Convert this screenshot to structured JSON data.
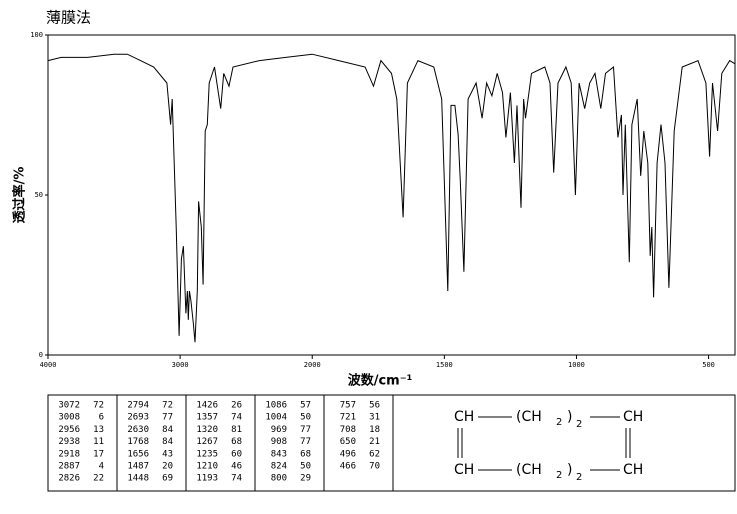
{
  "chart_data": {
    "type": "line",
    "title": "薄膜法",
    "ylabel": "透过率/%",
    "xlabel": "波数/cm⁻¹",
    "xlim": [
      4000,
      400
    ],
    "ylim": [
      0,
      100
    ],
    "xticks": [
      4000,
      3000,
      2000,
      1500,
      1000,
      500
    ],
    "yticks": [
      0,
      50,
      100
    ],
    "x_scale_break": 2000,
    "x_scale_ratio": 2,
    "color": "#000000",
    "x": [
      4000,
      3900,
      3700,
      3500,
      3400,
      3300,
      3200,
      3100,
      3072,
      3060,
      3030,
      3008,
      2990,
      2975,
      2956,
      2945,
      2938,
      2930,
      2918,
      2900,
      2887,
      2870,
      2860,
      2840,
      2826,
      2810,
      2794,
      2780,
      2740,
      2693,
      2670,
      2630,
      2600,
      2400,
      2200,
      2000,
      1900,
      1800,
      1768,
      1740,
      1700,
      1680,
      1656,
      1640,
      1600,
      1540,
      1510,
      1487,
      1475,
      1460,
      1448,
      1440,
      1426,
      1410,
      1380,
      1357,
      1340,
      1320,
      1300,
      1280,
      1267,
      1250,
      1235,
      1225,
      1210,
      1200,
      1193,
      1170,
      1120,
      1100,
      1086,
      1070,
      1040,
      1020,
      1004,
      990,
      969,
      950,
      930,
      908,
      890,
      860,
      843,
      830,
      824,
      815,
      800,
      790,
      770,
      757,
      745,
      730,
      721,
      715,
      708,
      695,
      680,
      665,
      650,
      630,
      600,
      540,
      510,
      496,
      485,
      466,
      450,
      420,
      400
    ],
    "series": [
      {
        "name": "spectrum",
        "values": [
          92,
          93,
          93,
          94,
          94,
          92,
          90,
          85,
          72,
          80,
          40,
          6,
          30,
          34,
          13,
          20,
          11,
          20,
          17,
          10,
          4,
          20,
          48,
          40,
          22,
          70,
          72,
          85,
          90,
          77,
          88,
          84,
          90,
          92,
          93,
          94,
          92,
          90,
          84,
          92,
          88,
          80,
          43,
          85,
          92,
          90,
          80,
          20,
          78,
          78,
          69,
          55,
          26,
          80,
          85,
          74,
          85,
          81,
          88,
          82,
          68,
          82,
          60,
          78,
          46,
          80,
          74,
          88,
          90,
          85,
          57,
          85,
          90,
          85,
          50,
          85,
          77,
          85,
          88,
          77,
          88,
          90,
          68,
          75,
          50,
          72,
          29,
          72,
          80,
          56,
          70,
          60,
          31,
          40,
          18,
          60,
          72,
          60,
          21,
          70,
          90,
          92,
          85,
          62,
          85,
          70,
          88,
          92,
          91
        ]
      }
    ]
  },
  "peak_table": {
    "columns": [
      [
        [
          3072,
          72
        ],
        [
          3008,
          6
        ],
        [
          2956,
          13
        ],
        [
          2938,
          11
        ],
        [
          2918,
          17
        ],
        [
          2887,
          4
        ],
        [
          2826,
          22
        ]
      ],
      [
        [
          2794,
          72
        ],
        [
          2693,
          77
        ],
        [
          2630,
          84
        ],
        [
          1768,
          84
        ],
        [
          1656,
          43
        ],
        [
          1487,
          20
        ],
        [
          1448,
          69
        ]
      ],
      [
        [
          1426,
          26
        ],
        [
          1357,
          74
        ],
        [
          1320,
          81
        ],
        [
          1267,
          68
        ],
        [
          1235,
          60
        ],
        [
          1210,
          46
        ],
        [
          1193,
          74
        ]
      ],
      [
        [
          1086,
          57
        ],
        [
          1004,
          50
        ],
        [
          969,
          77
        ],
        [
          908,
          77
        ],
        [
          843,
          68
        ],
        [
          824,
          50
        ],
        [
          800,
          29
        ]
      ],
      [
        [
          757,
          56
        ],
        [
          721,
          31
        ],
        [
          708,
          18
        ],
        [
          650,
          21
        ],
        [
          496,
          62
        ],
        [
          466,
          70
        ]
      ]
    ]
  },
  "structure": {
    "top": {
      "left": "CH",
      "group": "(CH",
      "sub": "2",
      "close": ")",
      "count": "2",
      "right": "CH"
    },
    "bottom": {
      "left": "CH",
      "group": "(CH",
      "sub": "2",
      "close": ")",
      "count": "2",
      "right": "CH"
    }
  }
}
